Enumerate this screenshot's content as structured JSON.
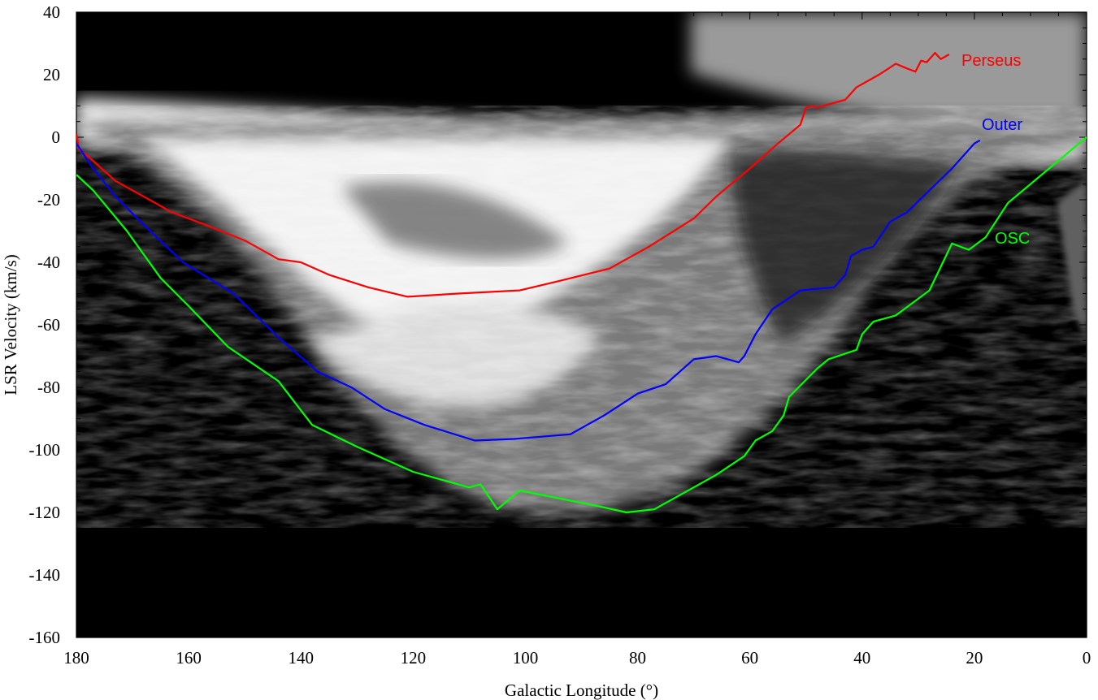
{
  "chart_data": {
    "type": "line",
    "xlabel": "Galactic Longitude (°)",
    "ylabel": "LSR Velocity (km/s)",
    "xlim": [
      180,
      0
    ],
    "ylim": [
      -160,
      40
    ],
    "x_ticks": [
      180,
      160,
      140,
      120,
      100,
      80,
      60,
      40,
      20,
      0
    ],
    "y_ticks": [
      40,
      20,
      0,
      -20,
      -40,
      -60,
      -80,
      -100,
      -120,
      -140,
      -160
    ],
    "background": "grayscale longitude-velocity intensity map",
    "grid": false,
    "series": [
      {
        "name": "Perseus",
        "color": "#ff0000",
        "points": [
          [
            180,
            1
          ],
          [
            179.5,
            -4
          ],
          [
            178,
            -6
          ],
          [
            173,
            -14
          ],
          [
            168,
            -19
          ],
          [
            163,
            -24
          ],
          [
            157,
            -28
          ],
          [
            150,
            -33
          ],
          [
            144,
            -39
          ],
          [
            140,
            -40
          ],
          [
            135,
            -44
          ],
          [
            128,
            -48
          ],
          [
            121,
            -51
          ],
          [
            112,
            -50
          ],
          [
            101,
            -49
          ],
          [
            94,
            -46
          ],
          [
            85,
            -42
          ],
          [
            78,
            -35
          ],
          [
            70,
            -26
          ],
          [
            66,
            -19
          ],
          [
            60,
            -10
          ],
          [
            55,
            -2
          ],
          [
            51,
            4
          ],
          [
            50,
            9.5
          ],
          [
            49,
            10
          ],
          [
            48,
            9.5
          ],
          [
            47,
            10
          ],
          [
            43,
            12
          ],
          [
            41,
            16
          ],
          [
            37,
            20
          ],
          [
            34,
            23.5
          ],
          [
            32,
            22
          ],
          [
            30.5,
            21
          ],
          [
            29.5,
            24.5
          ],
          [
            28.5,
            24
          ],
          [
            27,
            27
          ],
          [
            26,
            25
          ],
          [
            24.5,
            26.5
          ]
        ]
      },
      {
        "name": "Outer",
        "color": "#0000ff",
        "points": [
          [
            180,
            -2
          ],
          [
            177,
            -10
          ],
          [
            173,
            -19
          ],
          [
            168,
            -28
          ],
          [
            161,
            -40
          ],
          [
            152,
            -50
          ],
          [
            144,
            -64
          ],
          [
            137,
            -75
          ],
          [
            131,
            -80
          ],
          [
            125,
            -87
          ],
          [
            118,
            -92
          ],
          [
            109,
            -97
          ],
          [
            102,
            -96.5
          ],
          [
            92,
            -95
          ],
          [
            86,
            -89
          ],
          [
            80,
            -82
          ],
          [
            75,
            -79
          ],
          [
            70,
            -71
          ],
          [
            66,
            -70
          ],
          [
            62,
            -72
          ],
          [
            61,
            -70
          ],
          [
            59,
            -63
          ],
          [
            56,
            -55
          ],
          [
            51,
            -49
          ],
          [
            45,
            -48
          ],
          [
            43,
            -44
          ],
          [
            42,
            -38
          ],
          [
            40,
            -36
          ],
          [
            38,
            -35
          ],
          [
            35,
            -27
          ],
          [
            32,
            -24
          ],
          [
            28,
            -17
          ],
          [
            24,
            -10
          ],
          [
            20,
            -2
          ],
          [
            19,
            -1
          ]
        ]
      },
      {
        "name": "OSC",
        "color": "#00ff00",
        "points": [
          [
            180,
            -12
          ],
          [
            177,
            -17
          ],
          [
            171,
            -30
          ],
          [
            165,
            -45
          ],
          [
            160,
            -54
          ],
          [
            153,
            -67
          ],
          [
            144,
            -78
          ],
          [
            138,
            -92
          ],
          [
            130,
            -99
          ],
          [
            120,
            -107
          ],
          [
            110,
            -112
          ],
          [
            108,
            -111
          ],
          [
            105,
            -119
          ],
          [
            101,
            -113
          ],
          [
            87,
            -118
          ],
          [
            82,
            -120
          ],
          [
            77,
            -119
          ],
          [
            66,
            -108
          ],
          [
            61,
            -102
          ],
          [
            59,
            -97
          ],
          [
            56,
            -94
          ],
          [
            54,
            -89
          ],
          [
            53,
            -83
          ],
          [
            48,
            -74
          ],
          [
            46,
            -71
          ],
          [
            41,
            -68
          ],
          [
            40,
            -63
          ],
          [
            38,
            -59
          ],
          [
            34,
            -57
          ],
          [
            28,
            -49
          ],
          [
            24,
            -34
          ],
          [
            21,
            -36
          ],
          [
            18,
            -32
          ],
          [
            14,
            -21
          ],
          [
            0,
            0
          ]
        ]
      }
    ]
  }
}
